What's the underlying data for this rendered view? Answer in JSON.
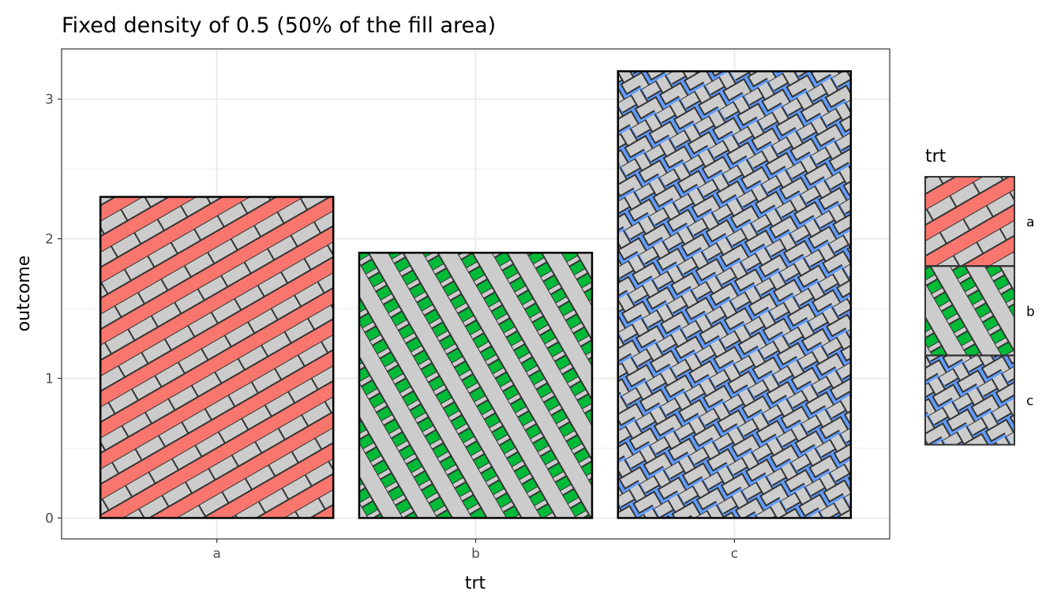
{
  "chart_data": {
    "type": "bar",
    "title": "Fixed density of 0.5 (50% of the fill area)",
    "xlabel": "trt",
    "ylabel": "outcome",
    "categories": [
      "a",
      "b",
      "c"
    ],
    "values": [
      2.3,
      1.9,
      3.2
    ],
    "ylim": [
      -0.15,
      3.36
    ],
    "yticks": [
      "0",
      "1",
      "2",
      "3"
    ],
    "grid": true,
    "legend": {
      "title": "trt",
      "position": "right",
      "entries": [
        "a",
        "b",
        "c"
      ]
    },
    "fills": {
      "a": "#F8766D",
      "b": "#00BA38",
      "c": "#619CFF"
    },
    "patterns": {
      "a": "stripe",
      "b": "crosshatch",
      "c": "weave"
    },
    "pattern_color": "#CCCCCC"
  }
}
